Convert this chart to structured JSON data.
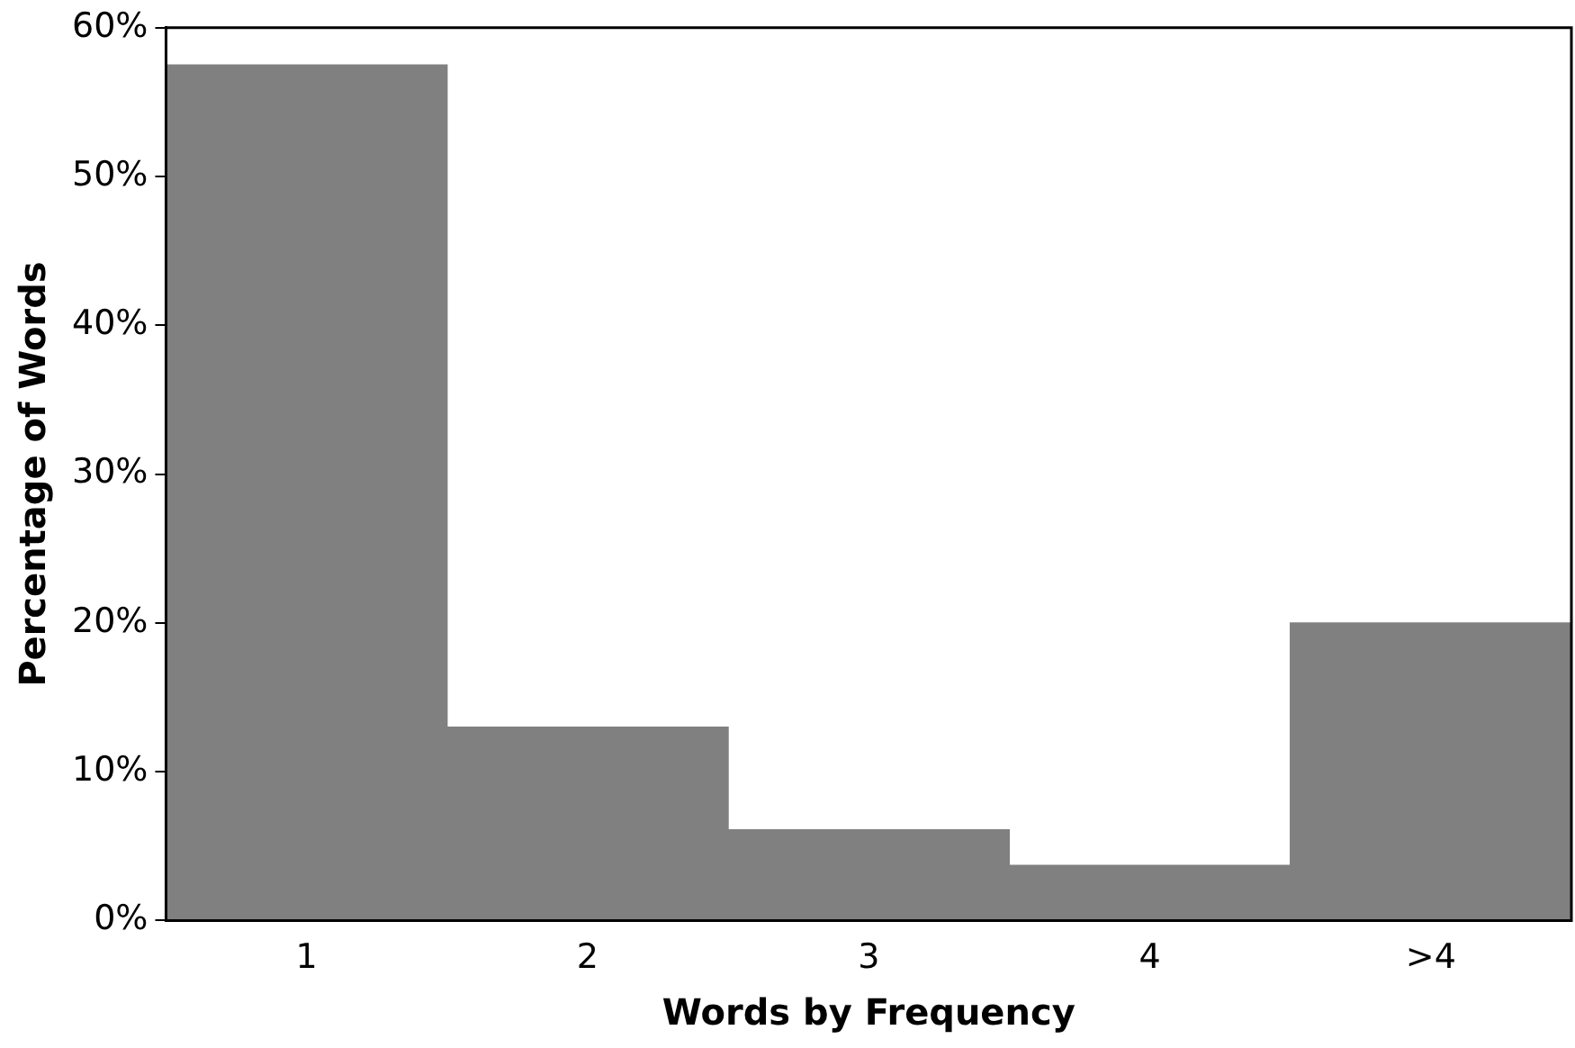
{
  "chart_data": {
    "type": "bar",
    "xlabel": "Words by Frequency",
    "ylabel": "Percentage of Words",
    "categories": [
      "1",
      "2",
      "3",
      "4",
      ">4"
    ],
    "values": [
      57.5,
      13.0,
      6.1,
      3.7,
      20.0
    ],
    "color": "#808080",
    "ylim": [
      0,
      60
    ],
    "yticks": [
      {
        "value": 0,
        "label": "0%"
      },
      {
        "value": 10,
        "label": "10%"
      },
      {
        "value": 20,
        "label": "20%"
      },
      {
        "value": 30,
        "label": "30%"
      },
      {
        "value": 40,
        "label": "40%"
      },
      {
        "value": 50,
        "label": "50%"
      },
      {
        "value": 60,
        "label": "60%"
      }
    ]
  }
}
